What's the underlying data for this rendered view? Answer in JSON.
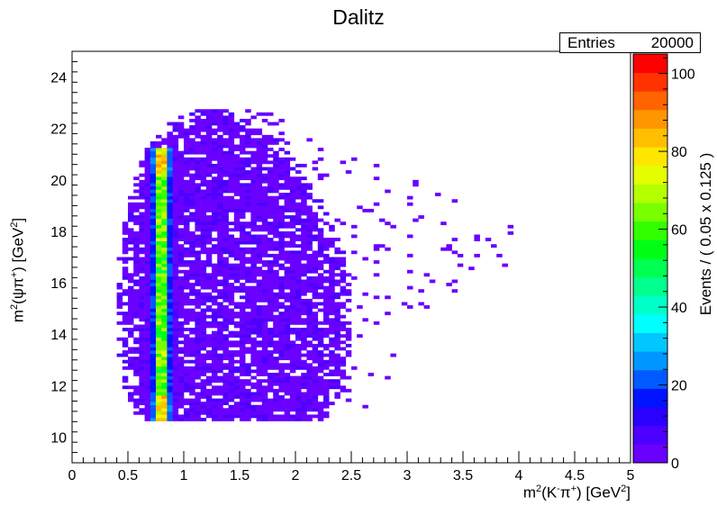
{
  "chart_data": {
    "type": "heatmap",
    "title": "Dalitz",
    "xlabel": {
      "pre": "m",
      "sup1": "2",
      "mid": "(K",
      "sup2": "-",
      "mid2": "π",
      "sup3": "+",
      "post": ") [GeV",
      "sup4": "2",
      "end": "]"
    },
    "ylabel": {
      "pre": "m",
      "sup1": "2",
      "mid": "(ψπ",
      "sup2": "+",
      "post": ") [GeV",
      "sup3": "2",
      "end": "]"
    },
    "zlabel": "Events / ( 0.05 x 0.125 )",
    "xlim": [
      0,
      5
    ],
    "ylim": [
      9,
      25
    ],
    "zlim": [
      0,
      105
    ],
    "x_ticks": [
      "0",
      "0.5",
      "1",
      "1.5",
      "2",
      "2.5",
      "3",
      "3.5",
      "4",
      "4.5",
      "5"
    ],
    "x_tick_values": [
      0,
      0.5,
      1,
      1.5,
      2,
      2.5,
      3,
      3.5,
      4,
      4.5,
      5
    ],
    "y_ticks": [
      "10",
      "12",
      "14",
      "16",
      "18",
      "20",
      "22",
      "24"
    ],
    "y_tick_values": [
      10,
      12,
      14,
      16,
      18,
      20,
      22,
      24
    ],
    "z_ticks": [
      "0",
      "20",
      "40",
      "60",
      "80",
      "100"
    ],
    "z_tick_values": [
      0,
      20,
      40,
      60,
      80,
      100
    ],
    "bin_width_x": 0.05,
    "bin_width_y": 0.125,
    "band": {
      "x_center": 0.8,
      "y_range": [
        10.6,
        21.3
      ]
    },
    "region": [
      [
        10.6,
        0.63,
        2.2
      ],
      [
        11.0,
        0.55,
        2.35
      ],
      [
        12.0,
        0.47,
        2.45
      ],
      [
        13.0,
        0.42,
        2.5
      ],
      [
        15.0,
        0.4,
        2.5
      ],
      [
        17.0,
        0.42,
        2.45
      ],
      [
        19.0,
        0.5,
        2.25
      ],
      [
        20.5,
        0.6,
        2.05
      ],
      [
        21.5,
        0.7,
        1.85
      ],
      [
        22.3,
        0.9,
        1.6
      ],
      [
        22.8,
        1.15,
        1.35
      ]
    ],
    "palette": [
      "#6a00ff",
      "#4c00ff",
      "#2a00ff",
      "#0014ff",
      "#005aff",
      "#0096ff",
      "#00c8ff",
      "#00ffff",
      "#00ffc8",
      "#00ff8c",
      "#00ff50",
      "#00ff14",
      "#32ff00",
      "#78ff00",
      "#b4ff00",
      "#e6ff00",
      "#ffe600",
      "#ffbe00",
      "#ff9600",
      "#ff6400",
      "#ff3200",
      "#ff0000"
    ]
  },
  "stats": {
    "label": "Entries",
    "value": "20000"
  }
}
